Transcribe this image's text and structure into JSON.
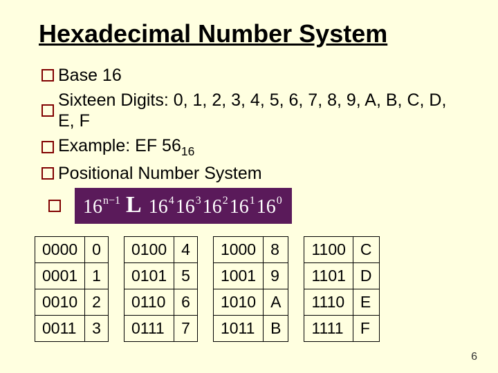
{
  "title": "Hexadecimal Number System",
  "bullets": {
    "b0": "Base 16",
    "b1": "Sixteen Digits: 0, 1, 2, 3, 4, 5, 6, 7, 8, 9, A, B, C, D, E, F",
    "b2_pre": "Example: EF 56",
    "b2_sub": "16",
    "b3": "Positional Number System"
  },
  "formula": {
    "base": "16",
    "exp_first": "n−1",
    "mid": "L",
    "exps": [
      "4",
      "3",
      "2",
      "1",
      "0"
    ],
    "bg_color": "#5a1a5a",
    "fg_color": "#ffffff"
  },
  "tables": [
    {
      "rows": [
        [
          "0000",
          "0"
        ],
        [
          "0001",
          "1"
        ],
        [
          "0010",
          "2"
        ],
        [
          "0011",
          "3"
        ]
      ]
    },
    {
      "rows": [
        [
          "0100",
          "4"
        ],
        [
          "0101",
          "5"
        ],
        [
          "0110",
          "6"
        ],
        [
          "0111",
          "7"
        ]
      ]
    },
    {
      "rows": [
        [
          "1000",
          "8"
        ],
        [
          "1001",
          "9"
        ],
        [
          "1010",
          "A"
        ],
        [
          "1011",
          "B"
        ]
      ]
    },
    {
      "rows": [
        [
          "1100",
          "C"
        ],
        [
          "1101",
          "D"
        ],
        [
          "1110",
          "E"
        ],
        [
          "1111",
          "F"
        ]
      ]
    }
  ],
  "page_number": "6",
  "colors": {
    "background": "#ffffe0",
    "bullet_border": "#800000",
    "table_border": "#000000",
    "text": "#000000"
  }
}
